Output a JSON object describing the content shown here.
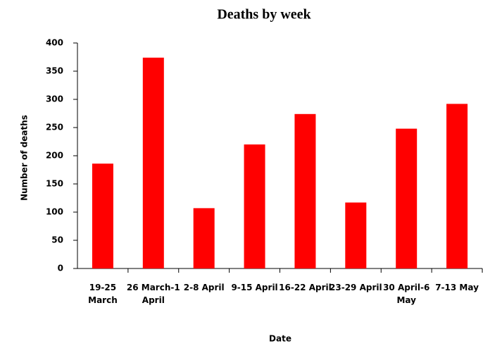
{
  "chart_data": {
    "type": "bar",
    "title": "Deaths by week",
    "x_label": "Date",
    "y_label": "Number of deaths",
    "categories": [
      "19-25 March",
      "26 March-1 April",
      "2-8 April",
      "9-15 April",
      "16-22 April",
      "23-29 April",
      "30 April-6 May",
      "7-13 May"
    ],
    "values": [
      186,
      374,
      107,
      220,
      274,
      117,
      248,
      292
    ],
    "color": "#ff0000",
    "ylim": [
      0,
      400
    ],
    "yticks": [
      0,
      50,
      100,
      150,
      200,
      250,
      300,
      350,
      400
    ],
    "grid": false
  }
}
